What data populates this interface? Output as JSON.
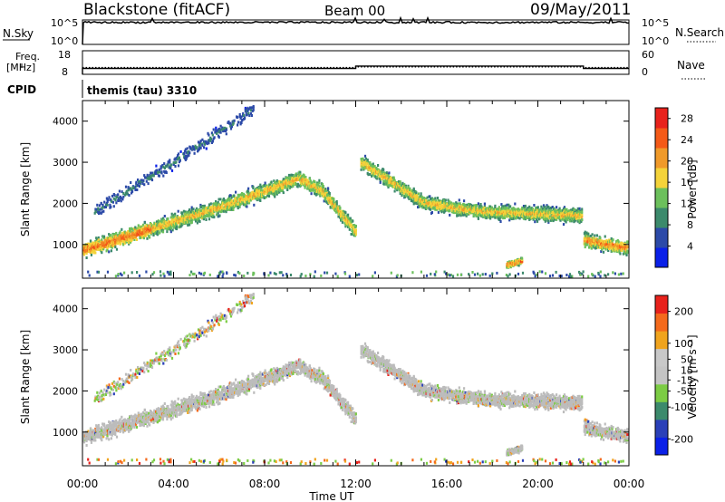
{
  "header": {
    "site": "Blackstone (fitACF)",
    "beam": "Beam 00",
    "date": "09/May/2011"
  },
  "strip_panels": {
    "nsky_label": "N.Sky",
    "nsearch_label": "N.Search",
    "log_ticks": [
      "10^5",
      "10^0"
    ],
    "freq_label_1": "Freq.",
    "freq_label_2": "[MHz]",
    "freq_ticks": [
      "18",
      "8"
    ],
    "nave_label": "Nave",
    "nave_ticks": [
      "60",
      "0"
    ],
    "cpid_label": "CPID",
    "cpid_text": "themis (tau) 3310"
  },
  "colors": {
    "power_scale": [
      "#0a20e8",
      "#2c4aa8",
      "#3c8a6c",
      "#6cc05c",
      "#f4d33a",
      "#f09a2a",
      "#f45a18",
      "#e8221c"
    ],
    "velocity_scale": [
      "#e8221c",
      "#f46a1c",
      "#f0a41e",
      "#c8c8c8",
      "#c4c4c4",
      "#7ccc44",
      "#3c8a6c",
      "#2a40b8",
      "#0a20e8"
    ],
    "ground_scatter": "#bcbcbc"
  },
  "chart_data": [
    {
      "type": "heatmap",
      "title": "Power",
      "xlabel": "Time UT",
      "ylabel": "Slant Range [km]",
      "x_ticks": [
        "00:00",
        "04:00",
        "08:00",
        "12:00",
        "16:00",
        "20:00",
        "00:00"
      ],
      "y_ticks": [
        "1000",
        "2000",
        "3000",
        "4000"
      ],
      "ylim": [
        180,
        4500
      ],
      "colorbar_label": "Power [dB]",
      "colorbar_ticks": [
        "4",
        "8",
        "12",
        "16",
        "20",
        "24",
        "28"
      ],
      "colorbar_range": [
        0,
        30
      ],
      "approx_echo_bands_hours_km": [
        {
          "t": [
            0.0,
            2.0,
            6.0,
            9.5,
            10.5,
            12.0
          ],
          "range": [
            850,
            1200,
            1900,
            2600,
            2300,
            1300
          ],
          "peak_db": 28
        },
        {
          "t": [
            0.5,
            4.0,
            7.5
          ],
          "range": [
            1800,
            3000,
            4300
          ],
          "peak_db": 10
        },
        {
          "t": [
            12.2,
            15.0,
            17.5,
            21.9
          ],
          "range": [
            3000,
            2000,
            1800,
            1700
          ],
          "peak_db": 22
        },
        {
          "t": [
            22.0,
            24.0
          ],
          "range": [
            1100,
            900
          ],
          "peak_db": 26
        },
        {
          "t": [
            18.6,
            19.3
          ],
          "range": [
            500,
            600
          ],
          "peak_db": 28
        }
      ]
    },
    {
      "type": "heatmap",
      "title": "Velocity",
      "xlabel": "Time UT",
      "ylabel": "Slant Range [km]",
      "x_ticks": [
        "00:00",
        "04:00",
        "08:00",
        "12:00",
        "16:00",
        "20:00",
        "00:00"
      ],
      "y_ticks": [
        "1000",
        "2000",
        "3000",
        "4000"
      ],
      "ylim": [
        180,
        4500
      ],
      "colorbar_label": "Velocity [m s⁻¹]",
      "colorbar_ticks": [
        "200",
        "100",
        "50",
        "15",
        "-15",
        "-50",
        "-100",
        "-200"
      ],
      "colorbar_range": [
        -250,
        250
      ],
      "ground_scatter": "mostly ground scatter (grey) along the echo bands"
    },
    {
      "type": "line",
      "title": "N.Sky / N.Search",
      "x_range_hours": [
        0,
        24
      ],
      "nsky_approx_log10": 4.5,
      "nsearch_style": "dotted"
    },
    {
      "type": "line",
      "title": "Freq. / Nave",
      "freq_mhz": [
        {
          "t": [
            0.0,
            12.0
          ],
          "value": 10.5
        },
        {
          "t": [
            12.0,
            22.0
          ],
          "value": 11.5
        },
        {
          "t": [
            22.0,
            24.0
          ],
          "value": 10.5
        }
      ],
      "nave_approx": [
        {
          "t": [
            0.0,
            12.0
          ],
          "value": 17
        },
        {
          "t": [
            12.0,
            22.0
          ],
          "value": 19
        },
        {
          "t": [
            22.0,
            24.0
          ],
          "value": 17
        }
      ]
    }
  ]
}
